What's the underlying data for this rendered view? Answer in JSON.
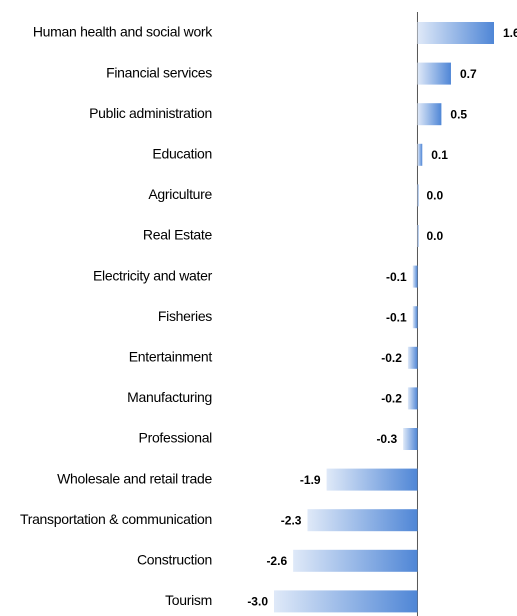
{
  "chart_data": {
    "type": "hbar",
    "categories": [
      "Human health and social work",
      "Financial services",
      "Public administration",
      "Education",
      "Agriculture",
      "Real Estate",
      "Electricity and water",
      "Fisheries",
      "Entertainment",
      "Manufacturing",
      "Professional",
      "Wholesale and retail trade",
      "Transportation & communication",
      "Construction",
      "Tourism"
    ],
    "values": [
      1.6,
      0.7,
      0.5,
      0.1,
      0,
      0,
      -0.1,
      -0.1,
      -0.2,
      -0.2,
      -0.3,
      -1.9,
      -2.3,
      -2.6,
      -3
    ],
    "value_labels": [
      "1.6",
      "0.7",
      "0.5",
      "0.1",
      "0.0",
      "0.0",
      "-0.1",
      "-0.1",
      "-0.2",
      "-0.2",
      "-0.3",
      "-1.9",
      "-2.3",
      "-2.6",
      "-3.0"
    ],
    "color": "#4f86d6"
  }
}
